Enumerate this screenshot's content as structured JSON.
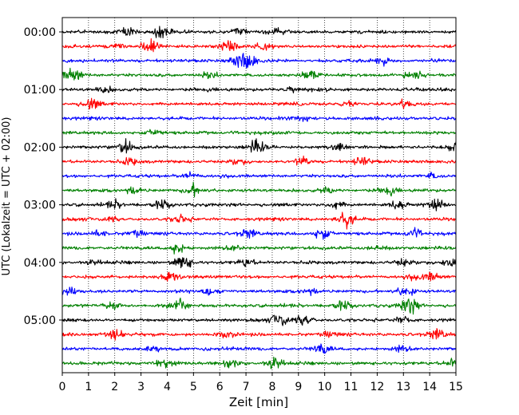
{
  "chart_data": {
    "type": "line",
    "title": "",
    "xlabel": "Zeit  [min]",
    "ylabel": "UTC (Lokalzeit = UTC + 02:00)",
    "xlim": [
      0,
      15
    ],
    "x_ticks": [
      0,
      1,
      2,
      3,
      4,
      5,
      6,
      7,
      8,
      9,
      10,
      11,
      12,
      13,
      14,
      15
    ],
    "x_tick_labels": [
      "0",
      "1",
      "2",
      "3",
      "4",
      "5",
      "6",
      "7",
      "8",
      "9",
      "10",
      "11",
      "12",
      "13",
      "14",
      "15"
    ],
    "y_tick_labels": [
      "00:00",
      "01:00",
      "02:00",
      "03:00",
      "04:00",
      "05:00"
    ],
    "y_tick_rows": [
      0,
      4,
      8,
      12,
      16,
      20
    ],
    "trace_count": 24,
    "trace_interval_minutes": 15,
    "color_cycle": [
      "#000000",
      "#ff0000",
      "#0000ff",
      "#008000"
    ],
    "grid": "vertical dotted",
    "events": [
      {
        "row": 0,
        "x": 2.5,
        "amp": 0.7
      },
      {
        "row": 0,
        "x": 3.8,
        "amp": 1.0
      },
      {
        "row": 0,
        "x": 6.7,
        "amp": 0.5
      },
      {
        "row": 0,
        "x": 8.1,
        "amp": 0.4
      },
      {
        "row": 1,
        "x": 3.3,
        "amp": 1.0
      },
      {
        "row": 1,
        "x": 6.4,
        "amp": 0.9
      },
      {
        "row": 1,
        "x": 7.7,
        "amp": 0.6
      },
      {
        "row": 1,
        "x": 2.1,
        "amp": 0.4
      },
      {
        "row": 2,
        "x": 7.1,
        "amp": 1.3
      },
      {
        "row": 2,
        "x": 6.7,
        "amp": 0.9
      },
      {
        "row": 2,
        "x": 12.2,
        "amp": 0.5
      },
      {
        "row": 3,
        "x": 0.4,
        "amp": 1.2
      },
      {
        "row": 3,
        "x": 9.4,
        "amp": 0.7
      },
      {
        "row": 3,
        "x": 13.4,
        "amp": 1.0
      },
      {
        "row": 3,
        "x": 5.6,
        "amp": 0.4
      },
      {
        "row": 4,
        "x": 1.6,
        "amp": 0.5
      },
      {
        "row": 4,
        "x": 8.9,
        "amp": 0.4
      },
      {
        "row": 5,
        "x": 1.1,
        "amp": 0.9
      },
      {
        "row": 5,
        "x": 10.9,
        "amp": 0.5
      },
      {
        "row": 5,
        "x": 13.1,
        "amp": 0.5
      },
      {
        "row": 6,
        "x": 9.1,
        "amp": 0.4
      },
      {
        "row": 7,
        "x": 3.5,
        "amp": 0.5
      },
      {
        "row": 8,
        "x": 2.4,
        "amp": 1.0
      },
      {
        "row": 8,
        "x": 7.4,
        "amp": 1.1
      },
      {
        "row": 8,
        "x": 15.0,
        "amp": 0.9
      },
      {
        "row": 8,
        "x": 10.6,
        "amp": 0.4
      },
      {
        "row": 9,
        "x": 2.6,
        "amp": 0.5
      },
      {
        "row": 9,
        "x": 9.2,
        "amp": 0.6
      },
      {
        "row": 9,
        "x": 11.4,
        "amp": 0.7
      },
      {
        "row": 9,
        "x": 6.7,
        "amp": 0.4
      },
      {
        "row": 10,
        "x": 4.9,
        "amp": 0.5
      },
      {
        "row": 10,
        "x": 14.1,
        "amp": 0.4
      },
      {
        "row": 11,
        "x": 2.7,
        "amp": 0.5
      },
      {
        "row": 11,
        "x": 5.0,
        "amp": 1.0
      },
      {
        "row": 11,
        "x": 10.1,
        "amp": 0.4
      },
      {
        "row": 11,
        "x": 12.4,
        "amp": 0.5
      },
      {
        "row": 12,
        "x": 3.8,
        "amp": 0.8
      },
      {
        "row": 12,
        "x": 10.4,
        "amp": 0.6
      },
      {
        "row": 12,
        "x": 12.8,
        "amp": 0.8
      },
      {
        "row": 12,
        "x": 14.2,
        "amp": 1.0
      },
      {
        "row": 12,
        "x": 2.0,
        "amp": 0.5
      },
      {
        "row": 13,
        "x": 4.5,
        "amp": 0.7
      },
      {
        "row": 13,
        "x": 10.8,
        "amp": 1.3
      },
      {
        "row": 13,
        "x": 1.9,
        "amp": 0.4
      },
      {
        "row": 14,
        "x": 2.8,
        "amp": 0.5
      },
      {
        "row": 14,
        "x": 7.1,
        "amp": 0.7
      },
      {
        "row": 14,
        "x": 9.9,
        "amp": 1.0
      },
      {
        "row": 14,
        "x": 13.4,
        "amp": 0.6
      },
      {
        "row": 14,
        "x": 1.4,
        "amp": 0.4
      },
      {
        "row": 15,
        "x": 4.4,
        "amp": 0.8
      },
      {
        "row": 15,
        "x": 6.6,
        "amp": 0.4
      },
      {
        "row": 15,
        "x": 12.0,
        "amp": 0.4
      },
      {
        "row": 16,
        "x": 4.6,
        "amp": 1.1
      },
      {
        "row": 16,
        "x": 7.0,
        "amp": 0.6
      },
      {
        "row": 16,
        "x": 13.0,
        "amp": 0.6
      },
      {
        "row": 16,
        "x": 14.8,
        "amp": 0.9
      },
      {
        "row": 16,
        "x": 1.2,
        "amp": 0.4
      },
      {
        "row": 17,
        "x": 4.1,
        "amp": 0.6
      },
      {
        "row": 17,
        "x": 13.5,
        "amp": 0.4
      },
      {
        "row": 17,
        "x": 14.1,
        "amp": 0.6
      },
      {
        "row": 18,
        "x": 0.3,
        "amp": 0.7
      },
      {
        "row": 18,
        "x": 5.6,
        "amp": 0.7
      },
      {
        "row": 18,
        "x": 13.1,
        "amp": 0.9
      },
      {
        "row": 18,
        "x": 9.4,
        "amp": 0.5
      },
      {
        "row": 19,
        "x": 1.9,
        "amp": 0.5
      },
      {
        "row": 19,
        "x": 4.4,
        "amp": 0.7
      },
      {
        "row": 19,
        "x": 10.7,
        "amp": 0.8
      },
      {
        "row": 19,
        "x": 13.2,
        "amp": 1.3
      },
      {
        "row": 20,
        "x": 8.3,
        "amp": 1.1
      },
      {
        "row": 20,
        "x": 9.2,
        "amp": 1.0
      },
      {
        "row": 20,
        "x": 13.0,
        "amp": 0.5
      },
      {
        "row": 21,
        "x": 2.0,
        "amp": 1.0
      },
      {
        "row": 21,
        "x": 6.2,
        "amp": 0.4
      },
      {
        "row": 21,
        "x": 14.3,
        "amp": 0.9
      },
      {
        "row": 21,
        "x": 10.2,
        "amp": 0.4
      },
      {
        "row": 22,
        "x": 9.9,
        "amp": 0.9
      },
      {
        "row": 22,
        "x": 3.5,
        "amp": 0.4
      },
      {
        "row": 22,
        "x": 12.9,
        "amp": 0.4
      },
      {
        "row": 23,
        "x": 3.9,
        "amp": 1.0
      },
      {
        "row": 23,
        "x": 8.1,
        "amp": 1.1
      },
      {
        "row": 23,
        "x": 6.4,
        "amp": 0.5
      },
      {
        "row": 23,
        "x": 14.9,
        "amp": 0.6
      }
    ]
  }
}
